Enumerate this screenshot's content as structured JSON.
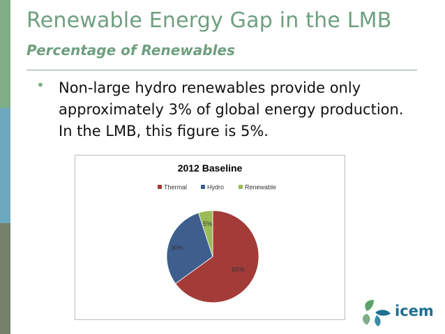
{
  "slide": {
    "title": "Renewable Energy Gap in the LMB",
    "subtitle": "Percentage of Renewables",
    "bullet_glyph": "•",
    "bullet": "Non-large hydro renewables provide only approximately 3% of global energy production. In the LMB, this figure is 5%."
  },
  "logo": {
    "text": "icem"
  },
  "colors": {
    "accent_green": "#7fae86",
    "accent_blue": "#6ea8bf",
    "accent_gray": "#767f6a",
    "title_green": "#6e9f7f"
  },
  "chart_data": {
    "type": "pie",
    "title": "2012 Baseline",
    "legend_position": "top",
    "categories": [
      "Thermal",
      "Hydro",
      "Renewable"
    ],
    "values": [
      65,
      30,
      5
    ],
    "labels": [
      "65%",
      "30%",
      "5%"
    ],
    "colors": [
      "#a33b38",
      "#3e5f8e",
      "#9bbb59"
    ]
  }
}
